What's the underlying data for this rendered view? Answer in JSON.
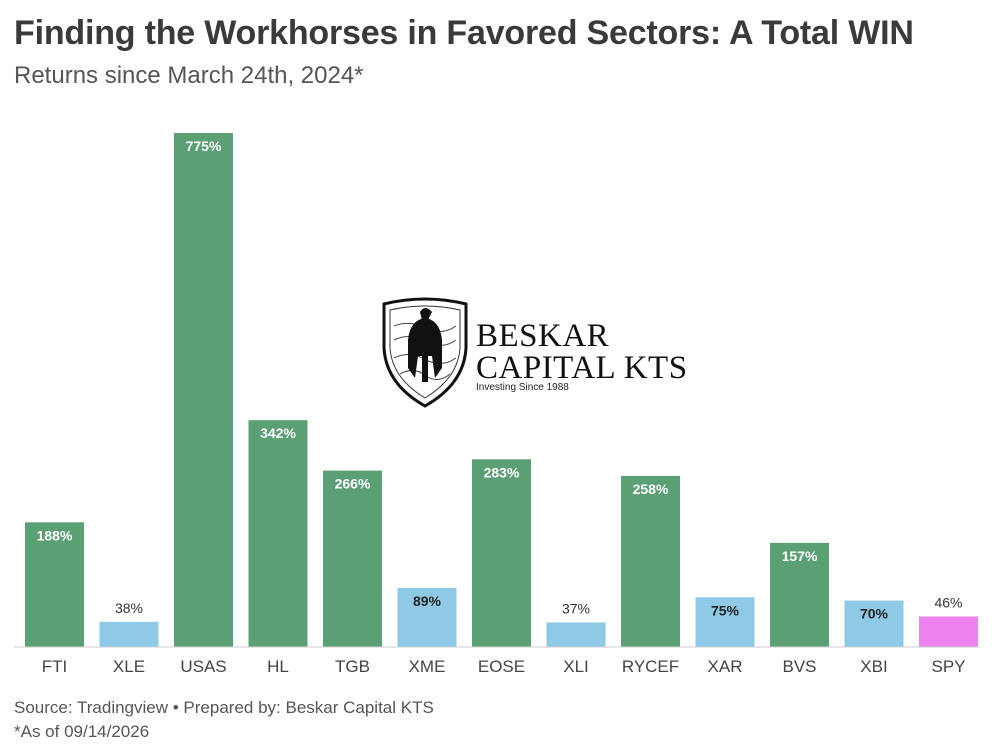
{
  "header": {
    "title": "Finding the Workhorses in Favored Sectors: A Total WIN",
    "subtitle": "Returns since March 24th, 2024*"
  },
  "logo": {
    "line1": "BESKAR",
    "line2": "CAPITAL KTS",
    "tagline": "Investing Since 1988"
  },
  "footer": {
    "source": "Source: Tradingview • Prepared by: Beskar Capital KTS",
    "asof": "*As of 09/14/2026"
  },
  "chart_data": {
    "type": "bar",
    "categories": [
      "FTI",
      "XLE",
      "USAS",
      "HL",
      "TGB",
      "XME",
      "EOSE",
      "XLI",
      "RYCEF",
      "XAR",
      "BVS",
      "XBI",
      "SPY"
    ],
    "values": [
      188,
      38,
      775,
      342,
      266,
      89,
      283,
      37,
      258,
      75,
      157,
      70,
      46
    ],
    "labels": [
      "188%",
      "38%",
      "775%",
      "342%",
      "266%",
      "89%",
      "283%",
      "37%",
      "258%",
      "75%",
      "157%",
      "70%",
      "46%"
    ],
    "colors": [
      "#5b9f74",
      "#8ecae6",
      "#5b9f74",
      "#5b9f74",
      "#5b9f74",
      "#8ecae6",
      "#5b9f74",
      "#8ecae6",
      "#5b9f74",
      "#8ecae6",
      "#5b9f74",
      "#8ecae6",
      "#ee82ee"
    ],
    "ylim": [
      0,
      775
    ],
    "grid": false,
    "legend": "none"
  }
}
